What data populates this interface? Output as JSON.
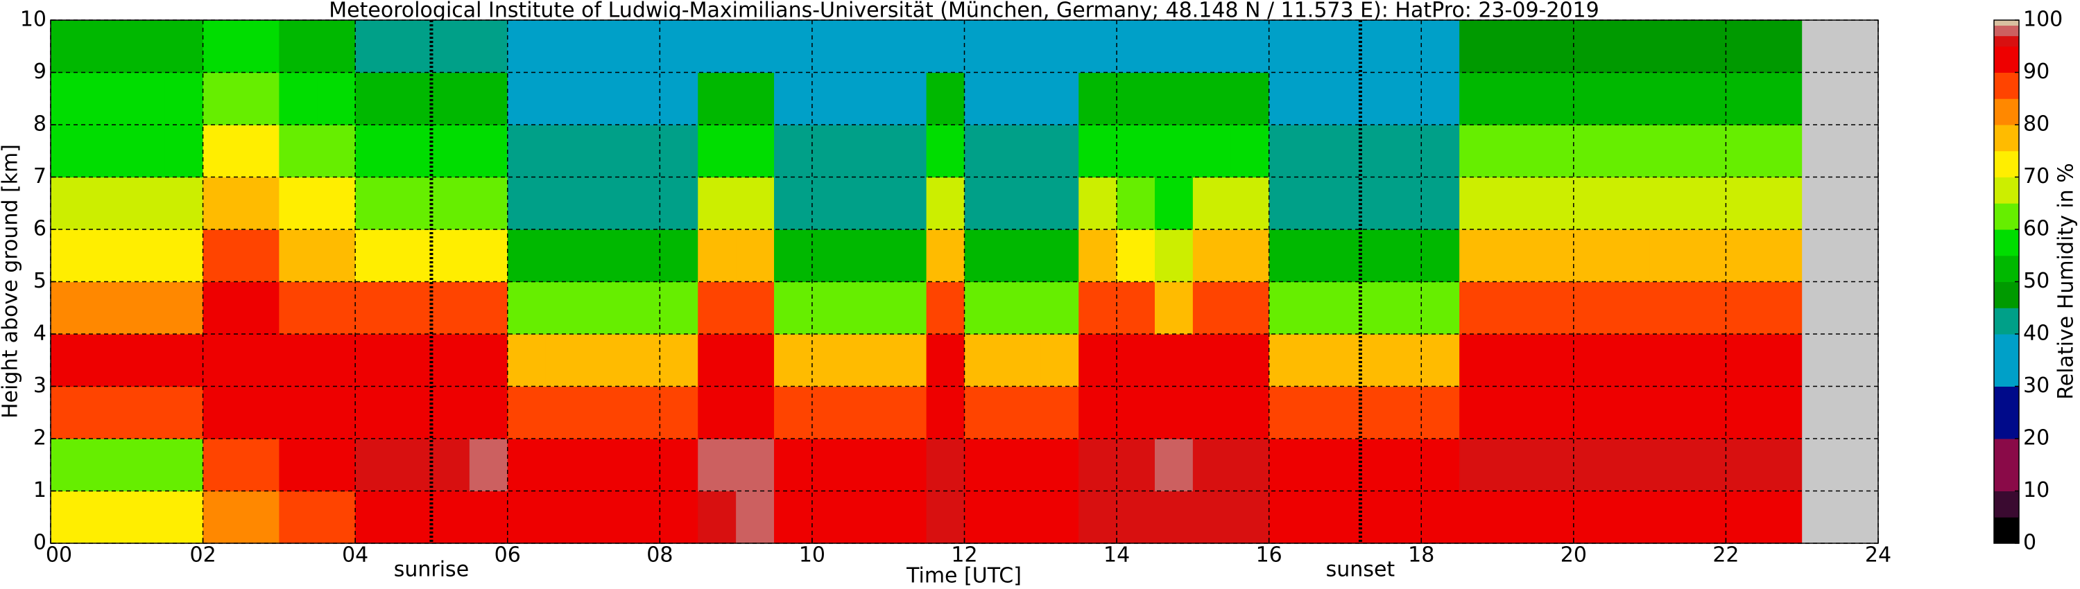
{
  "chart_data": {
    "type": "heatmap",
    "title": "Meteorological Institute of Ludwig-Maximilians-Universität (München, Germany; 48.148 N / 11.573 E):    HatPro: 23-09-2019",
    "xlabel": "Time [UTC]",
    "ylabel": "Height above ground [km]",
    "colorbar_label": "Relative Humidity in %",
    "x": [
      0,
      0.5,
      1,
      1.5,
      2,
      2.5,
      3,
      3.5,
      4,
      4.5,
      5,
      5.5,
      6,
      6.5,
      7,
      7.5,
      8,
      8.5,
      9,
      9.5,
      10,
      10.5,
      11,
      11.5,
      12,
      12.5,
      13,
      13.5,
      14,
      14.5,
      15,
      15.5,
      16,
      16.5,
      17,
      17.5,
      18,
      18.5,
      19,
      19.5,
      20,
      20.5,
      21,
      21.5,
      22,
      22.5,
      23,
      23.5,
      24
    ],
    "y": [
      0,
      1,
      2,
      3,
      4,
      5,
      6,
      7,
      8,
      9,
      10
    ],
    "values": [
      [
        70,
        60,
        85,
        90,
        82,
        72,
        65,
        58,
        55,
        50
      ],
      [
        70,
        60,
        85,
        90,
        82,
        72,
        65,
        58,
        55,
        50
      ],
      [
        70,
        60,
        85,
        90,
        82,
        72,
        65,
        58,
        55,
        50
      ],
      [
        70,
        60,
        85,
        90,
        82,
        72,
        65,
        58,
        55,
        50
      ],
      [
        80,
        88,
        90,
        92,
        90,
        88,
        78,
        70,
        60,
        55
      ],
      [
        80,
        88,
        90,
        92,
        90,
        88,
        78,
        70,
        60,
        55
      ],
      [
        85,
        90,
        92,
        92,
        88,
        78,
        70,
        62,
        55,
        50
      ],
      [
        85,
        90,
        92,
        92,
        88,
        78,
        70,
        62,
        55,
        50
      ],
      [
        90,
        95,
        92,
        90,
        85,
        72,
        62,
        55,
        50,
        40
      ],
      [
        90,
        95,
        92,
        90,
        85,
        72,
        62,
        55,
        50,
        40
      ],
      [
        90,
        95,
        92,
        90,
        85,
        72,
        62,
        55,
        50,
        40
      ],
      [
        90,
        97,
        92,
        90,
        85,
        72,
        62,
        55,
        50,
        40
      ],
      [
        90,
        92,
        88,
        78,
        62,
        52,
        42,
        40,
        35,
        33
      ],
      [
        90,
        92,
        88,
        78,
        62,
        52,
        42,
        40,
        35,
        33
      ],
      [
        90,
        92,
        88,
        78,
        62,
        52,
        42,
        40,
        35,
        33
      ],
      [
        90,
        92,
        88,
        78,
        62,
        52,
        42,
        40,
        35,
        33
      ],
      [
        90,
        92,
        88,
        78,
        62,
        52,
        42,
        40,
        35,
        33
      ],
      [
        95,
        97,
        93,
        90,
        85,
        75,
        65,
        58,
        52,
        35
      ],
      [
        98,
        97,
        93,
        90,
        85,
        75,
        65,
        58,
        52,
        35
      ],
      [
        90,
        92,
        88,
        78,
        62,
        52,
        42,
        40,
        35,
        33
      ],
      [
        90,
        92,
        88,
        78,
        62,
        52,
        42,
        40,
        35,
        33
      ],
      [
        90,
        92,
        88,
        78,
        62,
        52,
        42,
        40,
        35,
        33
      ],
      [
        90,
        92,
        88,
        78,
        62,
        52,
        42,
        40,
        35,
        33
      ],
      [
        95,
        95,
        93,
        90,
        85,
        75,
        65,
        58,
        52,
        35
      ],
      [
        90,
        92,
        88,
        78,
        62,
        52,
        42,
        40,
        35,
        33
      ],
      [
        90,
        92,
        88,
        78,
        62,
        52,
        42,
        40,
        35,
        33
      ],
      [
        90,
        92,
        88,
        78,
        62,
        52,
        42,
        40,
        35,
        33
      ],
      [
        95,
        96,
        93,
        90,
        85,
        75,
        65,
        58,
        52,
        35
      ],
      [
        95,
        96,
        93,
        90,
        85,
        72,
        62,
        55,
        50,
        35
      ],
      [
        95,
        97,
        93,
        90,
        78,
        65,
        58,
        55,
        50,
        35
      ],
      [
        95,
        96,
        93,
        90,
        85,
        75,
        65,
        58,
        52,
        35
      ],
      [
        95,
        96,
        93,
        90,
        85,
        75,
        65,
        58,
        52,
        35
      ],
      [
        90,
        92,
        88,
        78,
        62,
        52,
        42,
        40,
        35,
        33
      ],
      [
        90,
        92,
        88,
        78,
        62,
        52,
        42,
        40,
        35,
        33
      ],
      [
        90,
        92,
        88,
        78,
        62,
        52,
        42,
        40,
        35,
        33
      ],
      [
        90,
        92,
        88,
        78,
        62,
        52,
        42,
        40,
        35,
        33
      ],
      [
        90,
        92,
        88,
        78,
        62,
        52,
        42,
        40,
        35,
        33
      ],
      [
        92,
        95,
        92,
        90,
        88,
        78,
        68,
        60,
        52,
        45
      ],
      [
        92,
        95,
        92,
        90,
        88,
        78,
        68,
        60,
        52,
        45
      ],
      [
        92,
        95,
        92,
        90,
        88,
        78,
        68,
        60,
        52,
        45
      ],
      [
        92,
        95,
        92,
        90,
        88,
        78,
        68,
        60,
        52,
        45
      ],
      [
        92,
        95,
        92,
        90,
        88,
        78,
        68,
        60,
        52,
        45
      ],
      [
        92,
        95,
        92,
        90,
        88,
        78,
        68,
        60,
        52,
        45
      ],
      [
        92,
        95,
        92,
        90,
        88,
        78,
        68,
        60,
        52,
        45
      ],
      [
        92,
        95,
        92,
        90,
        88,
        78,
        68,
        60,
        52,
        45
      ],
      [
        92,
        95,
        92,
        90,
        88,
        78,
        68,
        60,
        52,
        45
      ],
      [
        null,
        null,
        null,
        null,
        null,
        null,
        null,
        null,
        null,
        null
      ],
      [
        null,
        null,
        null,
        null,
        null,
        null,
        null,
        null,
        null,
        null
      ]
    ],
    "missing_color": "#c8c8c8",
    "colorscale": [
      [
        0,
        "#000000"
      ],
      [
        5,
        "#3a0a30"
      ],
      [
        10,
        "#8a0a48"
      ],
      [
        20,
        "#000a8a"
      ],
      [
        30,
        "#00a0c8"
      ],
      [
        40,
        "#00a088"
      ],
      [
        45,
        "#009a00"
      ],
      [
        50,
        "#00b800"
      ],
      [
        55,
        "#00dd00"
      ],
      [
        60,
        "#66ee00"
      ],
      [
        65,
        "#ccee00"
      ],
      [
        70,
        "#ffee00"
      ],
      [
        75,
        "#ffbb00"
      ],
      [
        80,
        "#ff8800"
      ],
      [
        85,
        "#ff4400"
      ],
      [
        90,
        "#ee0000"
      ],
      [
        95,
        "#d81010"
      ],
      [
        97,
        "#cc6060"
      ],
      [
        99,
        "#d8c0a0"
      ]
    ],
    "xlim": [
      0,
      24
    ],
    "ylim": [
      0,
      10
    ],
    "clim": [
      0,
      100
    ],
    "xticks": [
      {
        "value": 0,
        "label": "00"
      },
      {
        "value": 2,
        "label": "02"
      },
      {
        "value": 4,
        "label": "04"
      },
      {
        "value": 6,
        "label": "06"
      },
      {
        "value": 8,
        "label": "08"
      },
      10,
      12,
      14,
      16,
      18,
      20,
      22,
      24
    ],
    "yticks": [
      0,
      1,
      2,
      3,
      4,
      5,
      6,
      7,
      8,
      9,
      10
    ],
    "cticks": [
      0,
      10,
      20,
      30,
      40,
      50,
      60,
      70,
      80,
      90,
      100
    ],
    "grid": true,
    "annotations": [
      {
        "x": 5.0,
        "text": "sunrise"
      },
      {
        "x": 17.2,
        "text": "sunset"
      }
    ]
  }
}
